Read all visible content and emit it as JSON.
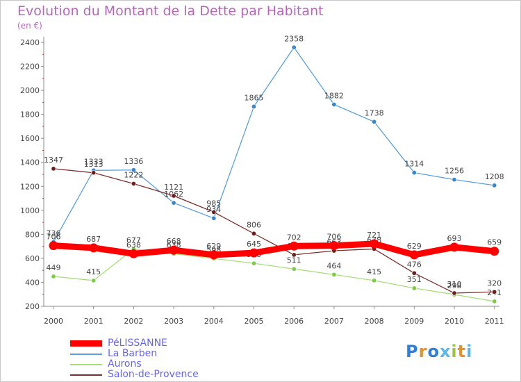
{
  "title": "Evolution du Montant de la Dette par Habitant",
  "subtitle": "(en €)",
  "logo": {
    "text": "Proxiti",
    "colors": [
      "#2f7fd6",
      "#e2932b",
      "#2f7fd6",
      "#5bb8e6",
      "#9bc53d",
      "#e2932b",
      "#5bb8e6"
    ]
  },
  "chart_data": {
    "type": "line",
    "title": "Evolution du Montant de la Dette par Habitant",
    "subtitle": "(en €)",
    "x": [
      "2000",
      "2001",
      "2002",
      "2003",
      "2004",
      "2005",
      "2006",
      "2007",
      "2008",
      "2009",
      "2010",
      "2011"
    ],
    "ylim": [
      200,
      2400
    ],
    "yticks": [
      200,
      400,
      600,
      800,
      1000,
      1200,
      1400,
      1600,
      1800,
      2000,
      2200,
      2400
    ],
    "grid": false,
    "legend_position": "bottom-left",
    "series": [
      {
        "name": "La Barben",
        "color": "#5a9fd6",
        "dot": "#3a86c8",
        "width": 1.3,
        "values": [
          736,
          1333,
          1336,
          1062,
          934,
          1865,
          2358,
          1882,
          1738,
          1314,
          1256,
          1208
        ]
      },
      {
        "name": "Aurons",
        "color": "#a6dd7a",
        "dot": "#7ecb46",
        "width": 1.3,
        "values": [
          449,
          415,
          677,
          638,
          598,
          558,
          511,
          464,
          415,
          351,
          298,
          241
        ]
      },
      {
        "name": "Salon-de-Provence",
        "color": "#7b2f2f",
        "dot": "#6b1f1f",
        "width": 1.3,
        "values": [
          1347,
          1313,
          1222,
          1121,
          985,
          806,
          629,
          663,
          678,
          476,
          310,
          320
        ]
      },
      {
        "name": "PéLISSANNE",
        "color": "#ff0000",
        "dot": "#ff0000",
        "width": 9,
        "values": [
          706,
          687,
          638,
          668,
          629,
          645,
          702,
          706,
          721,
          629,
          693,
          659
        ]
      }
    ]
  }
}
